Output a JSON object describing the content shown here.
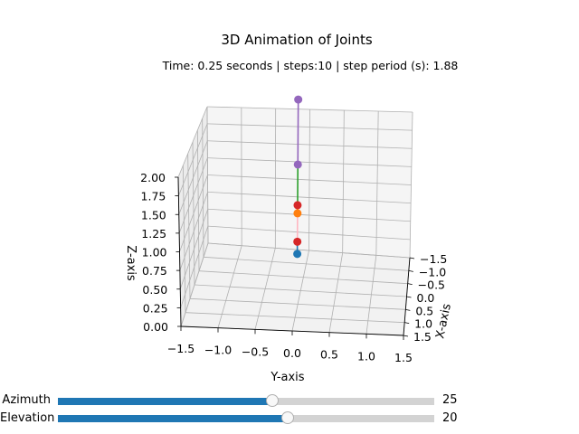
{
  "chart_data": {
    "type": "scatter",
    "title": "3D Animation of Joints",
    "subtitle": "Time: 0.25 seconds | steps:10 | step period (s): 1.88",
    "xlabel": "X-axis",
    "ylabel": "Y-axis",
    "zlabel": "Z-axis",
    "xlim": [
      -1.5,
      1.5
    ],
    "ylim": [
      -1.5,
      1.5
    ],
    "zlim": [
      0.0,
      2.0
    ],
    "x_ticks": [
      "−1.5",
      "−1.0",
      "−0.5",
      "0.0",
      "0.5",
      "1.0",
      "1.5"
    ],
    "y_ticks": [
      "−1.5",
      "−1.0",
      "−0.5",
      "0.0",
      "0.5",
      "1.0",
      "1.5"
    ],
    "z_ticks": [
      "0.00",
      "0.25",
      "0.50",
      "0.75",
      "1.00",
      "1.25",
      "1.50",
      "1.75",
      "2.00"
    ],
    "grid": true,
    "joints": [
      {
        "color": "#1f77b4",
        "x": 0.0,
        "y": 0.05,
        "z": 0.45
      },
      {
        "color": "#d62728",
        "x": 0.0,
        "y": 0.05,
        "z": 0.6
      },
      {
        "color": "#ff7f0e",
        "x": 0.0,
        "y": 0.05,
        "z": 0.95
      },
      {
        "color": "#d62728",
        "x": 0.0,
        "y": 0.05,
        "z": 1.05
      },
      {
        "color": "#9467bd",
        "x": 0.0,
        "y": 0.05,
        "z": 1.55
      },
      {
        "color": "#9467bd",
        "x": 0.0,
        "y": 0.05,
        "z": 2.35
      }
    ],
    "links": [
      {
        "from": 0,
        "to": 1,
        "color": "#1f77b4"
      },
      {
        "from": 1,
        "to": 2,
        "color": "#ffb6c1"
      },
      {
        "from": 2,
        "to": 3,
        "color": "#ff7f0e"
      },
      {
        "from": 3,
        "to": 4,
        "color": "#2ca02c"
      },
      {
        "from": 4,
        "to": 5,
        "color": "#9467bd"
      }
    ]
  },
  "sliders": {
    "azimuth": {
      "label": "Azimuth",
      "value": "25",
      "fraction": 0.57
    },
    "elevation": {
      "label": "Elevation",
      "value": "20",
      "fraction": 0.61
    }
  }
}
